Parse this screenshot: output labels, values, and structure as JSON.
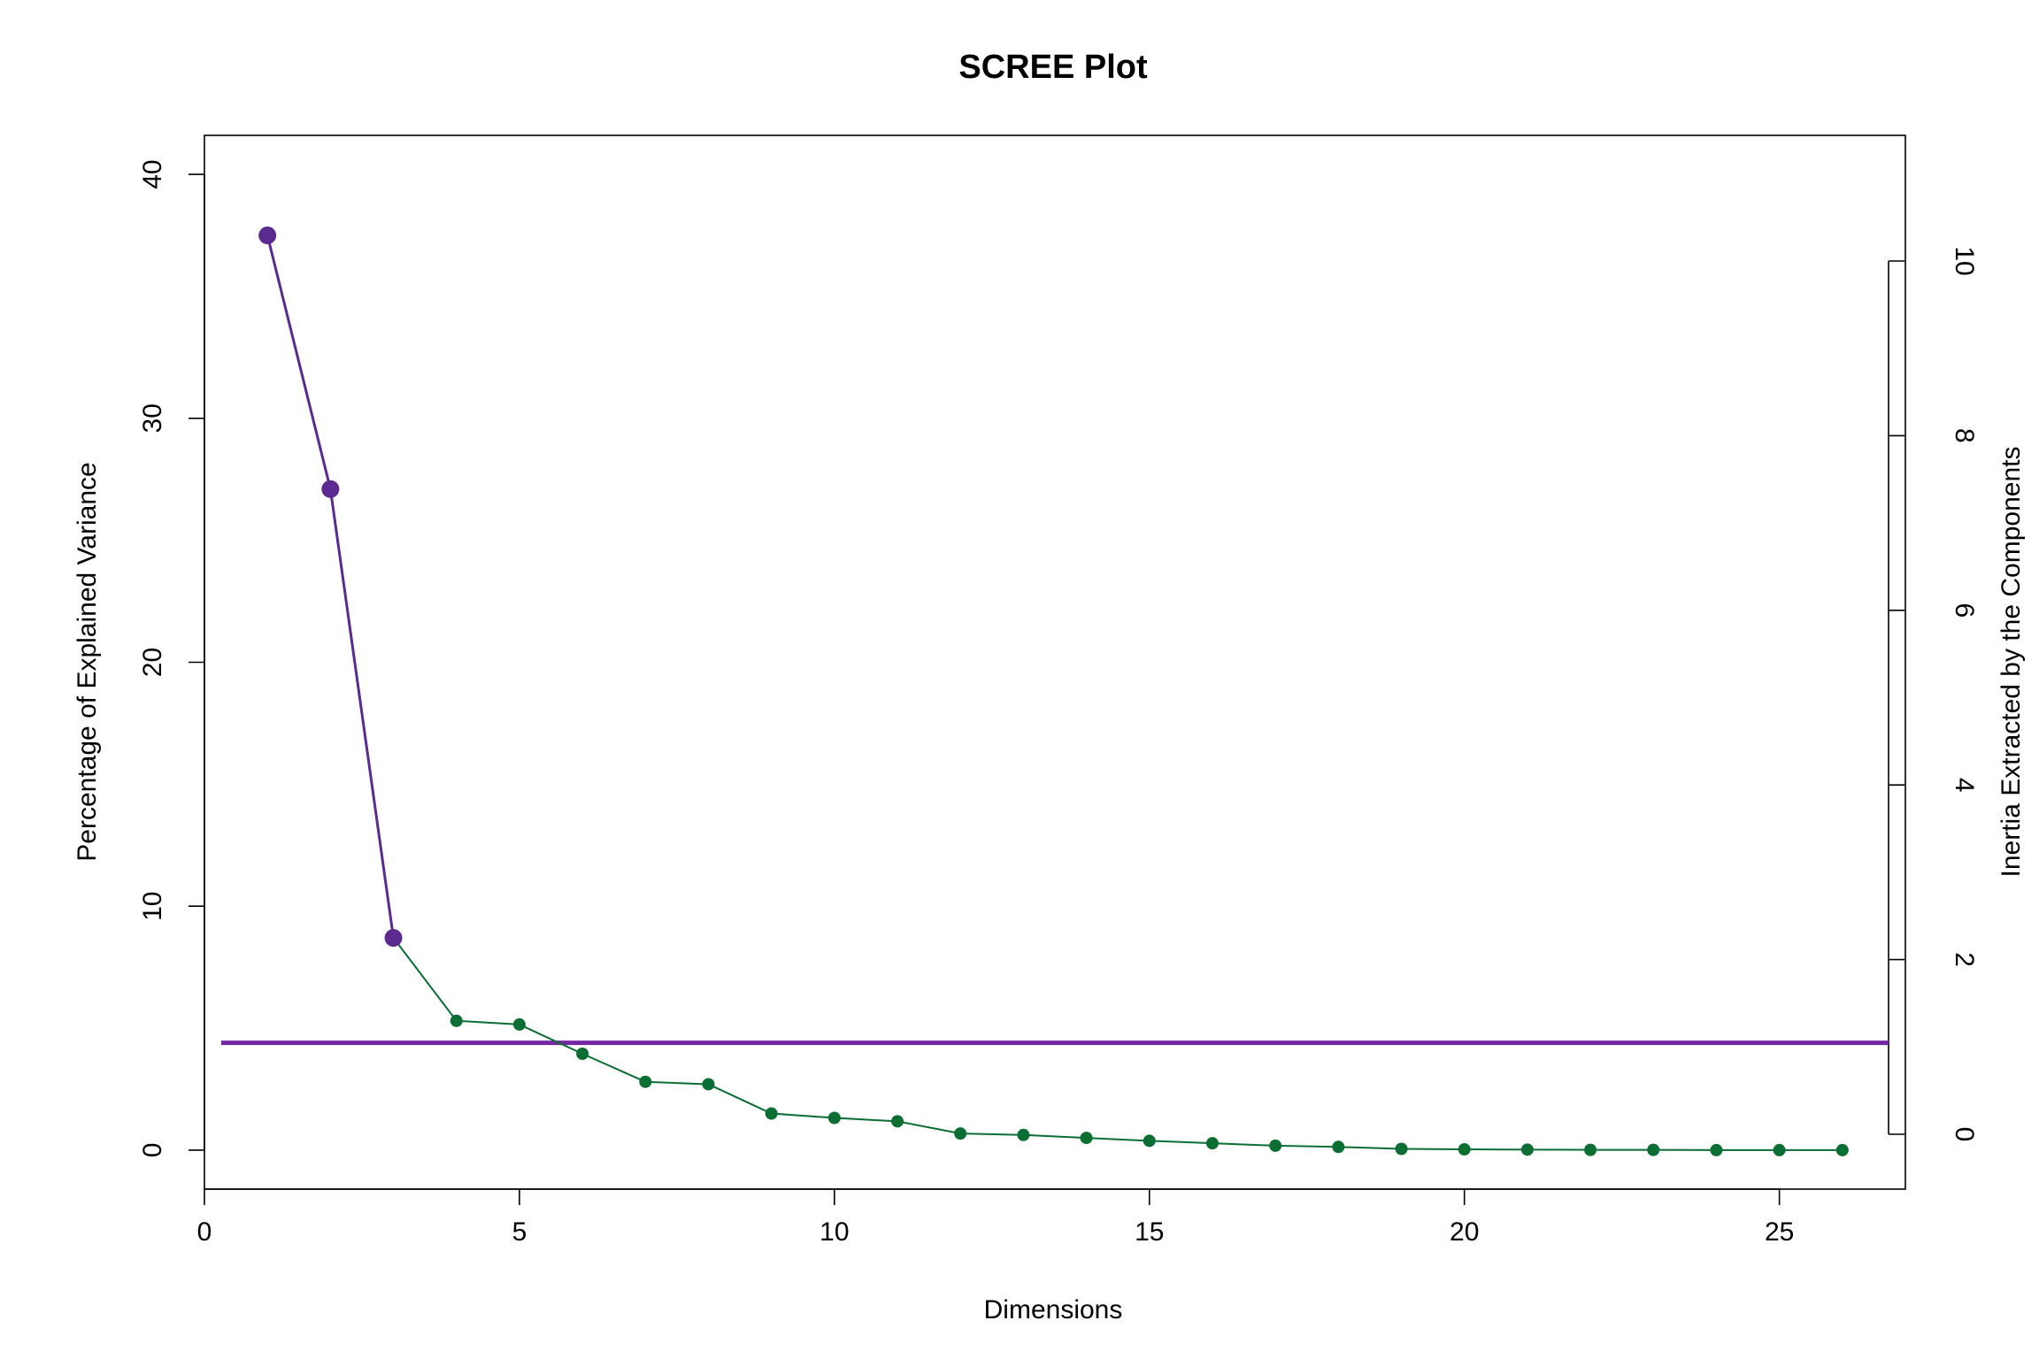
{
  "chart_data": {
    "type": "line",
    "title": "SCREE Plot",
    "xlabel": "Dimensions",
    "ylabel": "Percentage of Explained Variance",
    "y2label": "Inertia Extracted by the Components",
    "xlim": [
      0,
      27
    ],
    "ylim": [
      -1.6,
      41.6
    ],
    "y2lim": [
      0,
      10
    ],
    "x_ticks": [
      0,
      5,
      10,
      15,
      20,
      25
    ],
    "y_ticks": [
      0,
      10,
      20,
      30,
      40
    ],
    "y2_ticks": [
      0,
      2,
      4,
      6,
      8,
      10
    ],
    "grid": false,
    "legend": "none",
    "x": [
      1,
      2,
      3,
      4,
      5,
      6,
      7,
      8,
      9,
      10,
      11,
      12,
      13,
      14,
      15,
      16,
      17,
      18,
      19,
      20,
      21,
      22,
      23,
      24,
      25,
      26
    ],
    "values": [
      37.5,
      27.1,
      8.7,
      5.3,
      5.15,
      3.95,
      2.8,
      2.7,
      1.5,
      1.32,
      1.18,
      0.68,
      0.62,
      0.5,
      0.38,
      0.28,
      0.18,
      0.13,
      0.05,
      0.03,
      0.02,
      0.01,
      0.01,
      0.0,
      0.0,
      0.0
    ],
    "n_significant": 3,
    "reference_line_y": 4.4,
    "colors": {
      "significant": "#5b2a91",
      "nonsignificant": "#0b6e32",
      "reference": "#7327a3"
    }
  }
}
